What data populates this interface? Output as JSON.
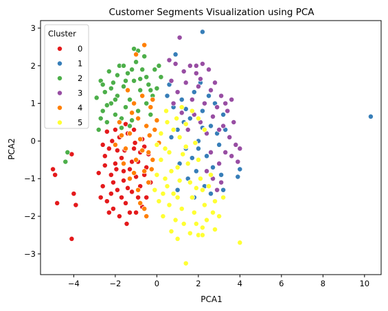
{
  "chart_data": {
    "type": "scatter",
    "title": "Customer Segments Visualization using PCA",
    "xlabel": "PCA1",
    "ylabel": "PCA2",
    "xlim": [
      -5.6,
      10.8
    ],
    "ylim": [
      -3.55,
      3.2
    ],
    "xticks": [
      -4,
      -2,
      0,
      2,
      4,
      6,
      8,
      10
    ],
    "yticks": [
      -3,
      -2,
      -1,
      0,
      1,
      2,
      3
    ],
    "grid": false,
    "legend": {
      "title": "Cluster",
      "position": "top-left"
    },
    "series": [
      {
        "name": "0",
        "color": "#e41a1c",
        "points": [
          [
            -5.0,
            -0.75
          ],
          [
            -4.9,
            -0.9
          ],
          [
            -4.8,
            -1.65
          ],
          [
            -4.1,
            -0.35
          ],
          [
            -4.0,
            -1.4
          ],
          [
            -3.9,
            -1.7
          ],
          [
            -4.1,
            -2.6
          ],
          [
            -2.8,
            -0.85
          ],
          [
            -2.6,
            -1.2
          ],
          [
            -2.5,
            -0.4
          ],
          [
            -2.4,
            -1.6
          ],
          [
            -2.3,
            -0.2
          ],
          [
            -2.2,
            -0.9
          ],
          [
            -2.1,
            -1.8
          ],
          [
            -2.0,
            -0.6
          ],
          [
            -1.9,
            -1.3
          ],
          [
            -1.8,
            0.1
          ],
          [
            -1.7,
            -0.45
          ],
          [
            -1.6,
            -1.05
          ],
          [
            -1.5,
            -1.65
          ],
          [
            -1.4,
            0.2
          ],
          [
            -1.3,
            -0.75
          ],
          [
            -1.2,
            -1.35
          ],
          [
            -1.1,
            -0.2
          ],
          [
            -1.0,
            -1.9
          ],
          [
            -0.9,
            -0.55
          ],
          [
            -0.8,
            -1.2
          ],
          [
            -0.7,
            0.05
          ],
          [
            -0.6,
            -0.9
          ],
          [
            -0.5,
            -1.5
          ],
          [
            -0.4,
            -0.35
          ],
          [
            -0.3,
            -1.1
          ],
          [
            -2.6,
            -0.1
          ],
          [
            -2.2,
            -1.4
          ],
          [
            -1.9,
            -0.25
          ],
          [
            -1.6,
            -0.8
          ],
          [
            -1.3,
            -1.9
          ],
          [
            -1.0,
            -0.95
          ],
          [
            -0.7,
            -1.75
          ],
          [
            -2.4,
            0.25
          ],
          [
            -2.0,
            0.3
          ],
          [
            -1.5,
            0.45
          ],
          [
            -1.1,
            0.3
          ],
          [
            -0.8,
            -0.3
          ],
          [
            -2.7,
            -1.5
          ],
          [
            -2.1,
            -1.1
          ],
          [
            -1.7,
            -1.5
          ],
          [
            -1.2,
            -0.55
          ],
          [
            -0.5,
            -0.7
          ],
          [
            -1.8,
            -2.0
          ],
          [
            -2.5,
            -0.65
          ],
          [
            -1.4,
            -1.25
          ],
          [
            -0.9,
            -1.5
          ],
          [
            -0.6,
            -0.15
          ],
          [
            -2.3,
            -1.9
          ],
          [
            -1.45,
            -2.2
          ],
          [
            -1.95,
            -0.75
          ],
          [
            -1.05,
            -0.05
          ],
          [
            -2.15,
            0.0
          ],
          [
            -1.55,
            -0.25
          ]
        ]
      },
      {
        "name": "1",
        "color": "#377eb8",
        "points": [
          [
            2.2,
            2.9
          ],
          [
            10.3,
            0.65
          ],
          [
            4.0,
            -0.75
          ],
          [
            3.9,
            -0.95
          ],
          [
            0.9,
            2.3
          ],
          [
            0.6,
            1.5
          ],
          [
            0.8,
            0.9
          ],
          [
            1.0,
            0.3
          ],
          [
            1.2,
            1.1
          ],
          [
            1.4,
            -0.2
          ],
          [
            1.6,
            0.6
          ],
          [
            1.8,
            1.3
          ],
          [
            2.0,
            0.0
          ],
          [
            2.2,
            0.8
          ],
          [
            2.4,
            -0.4
          ],
          [
            2.6,
            0.4
          ],
          [
            2.8,
            1.0
          ],
          [
            3.0,
            -0.1
          ],
          [
            3.2,
            0.7
          ],
          [
            1.1,
            -0.6
          ],
          [
            1.5,
            -1.0
          ],
          [
            1.9,
            -0.8
          ],
          [
            2.3,
            -1.2
          ],
          [
            2.7,
            -0.7
          ],
          [
            3.1,
            -0.9
          ],
          [
            1.3,
            0.5
          ],
          [
            1.7,
            -0.45
          ],
          [
            2.1,
            1.55
          ],
          [
            2.5,
            1.2
          ],
          [
            2.9,
            0.2
          ],
          [
            3.3,
            0.3
          ],
          [
            0.7,
            0.1
          ],
          [
            1.0,
            -1.3
          ],
          [
            1.8,
            -1.5
          ],
          [
            2.6,
            -1.4
          ],
          [
            3.2,
            -1.3
          ],
          [
            0.5,
            1.2
          ],
          [
            2.0,
            -0.2
          ],
          [
            2.2,
            0.35
          ],
          [
            1.4,
            0.85
          ]
        ]
      },
      {
        "name": "2",
        "color": "#4daf4a",
        "points": [
          [
            -4.3,
            -0.3
          ],
          [
            -4.4,
            -0.55
          ],
          [
            -2.9,
            1.15
          ],
          [
            -2.8,
            0.3
          ],
          [
            -2.7,
            1.6
          ],
          [
            -2.6,
            0.8
          ],
          [
            -2.5,
            1.3
          ],
          [
            -2.4,
            0.5
          ],
          [
            -2.3,
            1.85
          ],
          [
            -2.2,
            1.0
          ],
          [
            -2.1,
            1.55
          ],
          [
            -2.0,
            0.7
          ],
          [
            -1.9,
            1.2
          ],
          [
            -1.8,
            2.0
          ],
          [
            -1.7,
            0.6
          ],
          [
            -1.6,
            1.45
          ],
          [
            -1.5,
            0.9
          ],
          [
            -1.4,
            1.8
          ],
          [
            -1.3,
            1.1
          ],
          [
            -1.2,
            0.55
          ],
          [
            -1.1,
            1.6
          ],
          [
            -1.0,
            2.1
          ],
          [
            -0.9,
            0.8
          ],
          [
            -0.8,
            1.35
          ],
          [
            -0.7,
            1.9
          ],
          [
            -0.6,
            2.25
          ],
          [
            -0.5,
            1.0
          ],
          [
            -0.4,
            1.5
          ],
          [
            -0.3,
            0.7
          ],
          [
            -0.2,
            1.2
          ],
          [
            -0.1,
            1.9
          ],
          [
            0.0,
            1.4
          ],
          [
            0.1,
            2.0
          ],
          [
            -0.9,
            2.4
          ],
          [
            -1.1,
            2.45
          ],
          [
            -2.6,
            1.5
          ],
          [
            -2.2,
            1.4
          ],
          [
            -1.9,
            1.75
          ],
          [
            -1.5,
            1.6
          ],
          [
            -1.2,
            1.9
          ],
          [
            -0.8,
            1.65
          ],
          [
            -0.5,
            1.7
          ],
          [
            -2.0,
            1.1
          ],
          [
            -1.7,
            0.35
          ],
          [
            -1.3,
            0.4
          ],
          [
            -2.4,
            0.95
          ],
          [
            -2.7,
            0.6
          ],
          [
            -1.6,
            2.0
          ],
          [
            -0.3,
            1.35
          ],
          [
            0.2,
            1.7
          ]
        ]
      },
      {
        "name": "3",
        "color": "#984ea3",
        "points": [
          [
            1.1,
            2.75
          ],
          [
            0.6,
            2.15
          ],
          [
            0.9,
            2.05
          ],
          [
            1.3,
            1.85
          ],
          [
            1.6,
            2.0
          ],
          [
            1.9,
            1.8
          ],
          [
            2.2,
            2.05
          ],
          [
            2.5,
            1.9
          ],
          [
            2.8,
            1.55
          ],
          [
            3.1,
            1.2
          ],
          [
            3.4,
            0.8
          ],
          [
            3.7,
            0.5
          ],
          [
            4.0,
            -0.2
          ],
          [
            3.9,
            -0.55
          ],
          [
            0.7,
            1.6
          ],
          [
            1.0,
            1.3
          ],
          [
            1.4,
            1.55
          ],
          [
            1.7,
            1.1
          ],
          [
            2.0,
            1.45
          ],
          [
            2.3,
            1.0
          ],
          [
            2.6,
            1.35
          ],
          [
            2.9,
            0.9
          ],
          [
            3.2,
            0.4
          ],
          [
            3.5,
            0.1
          ],
          [
            3.3,
            -0.3
          ],
          [
            3.0,
            -0.6
          ],
          [
            2.7,
            -1.0
          ],
          [
            2.4,
            -0.8
          ],
          [
            3.6,
            -0.4
          ],
          [
            0.8,
            1.0
          ],
          [
            1.2,
            0.75
          ],
          [
            1.5,
            0.3
          ],
          [
            1.8,
            0.7
          ],
          [
            2.1,
            0.5
          ],
          [
            2.4,
            0.2
          ],
          [
            2.7,
            0.65
          ],
          [
            3.0,
            0.3
          ],
          [
            3.3,
            1.0
          ],
          [
            3.6,
            1.1
          ],
          [
            1.9,
            2.0
          ],
          [
            2.1,
            1.65
          ],
          [
            2.6,
            -0.3
          ],
          [
            3.1,
            -1.1
          ],
          [
            2.9,
            -1.3
          ],
          [
            3.8,
            -0.1
          ]
        ]
      },
      {
        "name": "4",
        "color": "#ff7f00",
        "points": [
          [
            -0.6,
            2.55
          ],
          [
            -1.0,
            2.3
          ],
          [
            -1.4,
            1.35
          ],
          [
            -1.1,
            1.0
          ],
          [
            -0.7,
            1.2
          ],
          [
            -0.3,
            0.9
          ],
          [
            -0.5,
            0.4
          ],
          [
            -0.9,
            0.6
          ],
          [
            -1.3,
            0.2
          ],
          [
            -1.7,
            0.15
          ],
          [
            -2.0,
            -0.1
          ],
          [
            -1.5,
            -0.2
          ],
          [
            -0.8,
            0.05
          ],
          [
            -0.4,
            -0.3
          ],
          [
            -0.1,
            0.3
          ],
          [
            0.1,
            -0.05
          ],
          [
            -0.2,
            -0.5
          ],
          [
            -0.6,
            -0.8
          ],
          [
            -1.0,
            -0.5
          ],
          [
            -1.3,
            -1.0
          ],
          [
            -0.9,
            -1.3
          ],
          [
            -0.4,
            -1.1
          ],
          [
            -0.6,
            -1.8
          ],
          [
            -0.5,
            -2.0
          ],
          [
            -0.8,
            -1.65
          ],
          [
            -1.2,
            0.75
          ],
          [
            -0.2,
            1.1
          ],
          [
            0.0,
            0.55
          ],
          [
            -1.8,
            0.5
          ],
          [
            -0.35,
            0.15
          ],
          [
            -0.7,
            -0.25
          ],
          [
            -1.1,
            -0.85
          ],
          [
            -0.25,
            -0.75
          ],
          [
            -1.6,
            -0.6
          ]
        ]
      },
      {
        "name": "5",
        "color": "#ffff33",
        "points": [
          [
            1.4,
            -3.25
          ],
          [
            4.0,
            -2.7
          ],
          [
            2.0,
            -2.5
          ],
          [
            2.2,
            -2.5
          ],
          [
            2.8,
            -2.35
          ],
          [
            0.7,
            -2.4
          ],
          [
            0.0,
            -0.1
          ],
          [
            0.2,
            -0.5
          ],
          [
            0.4,
            -1.0
          ],
          [
            0.6,
            -0.3
          ],
          [
            0.8,
            -1.4
          ],
          [
            1.0,
            -0.7
          ],
          [
            1.2,
            -1.8
          ],
          [
            1.4,
            -0.15
          ],
          [
            1.6,
            -1.1
          ],
          [
            1.8,
            -1.9
          ],
          [
            2.0,
            -0.5
          ],
          [
            2.2,
            -1.3
          ],
          [
            2.4,
            -2.1
          ],
          [
            2.6,
            -0.9
          ],
          [
            2.8,
            -1.6
          ],
          [
            3.0,
            -2.0
          ],
          [
            0.1,
            -1.6
          ],
          [
            0.3,
            -2.0
          ],
          [
            0.5,
            -1.2
          ],
          [
            0.9,
            -2.1
          ],
          [
            1.1,
            -1.05
          ],
          [
            1.3,
            -2.2
          ],
          [
            1.5,
            -0.6
          ],
          [
            1.7,
            -1.5
          ],
          [
            1.9,
            -2.2
          ],
          [
            2.1,
            -1.0
          ],
          [
            2.3,
            -1.7
          ],
          [
            2.5,
            -1.2
          ],
          [
            0.2,
            0.2
          ],
          [
            0.5,
            0.5
          ],
          [
            0.8,
            0.3
          ],
          [
            1.1,
            0.1
          ],
          [
            1.4,
            0.45
          ],
          [
            1.7,
            0.8
          ],
          [
            2.0,
            0.6
          ],
          [
            2.3,
            0.3
          ],
          [
            1.2,
            0.9
          ],
          [
            0.4,
            -0.2
          ],
          [
            0.7,
            -0.8
          ],
          [
            1.0,
            -1.5
          ],
          [
            1.9,
            -1.25
          ],
          [
            2.7,
            -1.9
          ],
          [
            0.3,
            -1.4
          ],
          [
            0.6,
            -1.7
          ],
          [
            1.6,
            -2.45
          ],
          [
            2.2,
            -2.3
          ],
          [
            1.0,
            -2.6
          ],
          [
            3.2,
            -1.5
          ],
          [
            0.0,
            -0.9
          ],
          [
            -0.1,
            -1.3
          ],
          [
            0.45,
            0.8
          ],
          [
            1.25,
            -0.35
          ],
          [
            1.85,
            -0.05
          ],
          [
            0.95,
            0.6
          ]
        ]
      }
    ]
  }
}
